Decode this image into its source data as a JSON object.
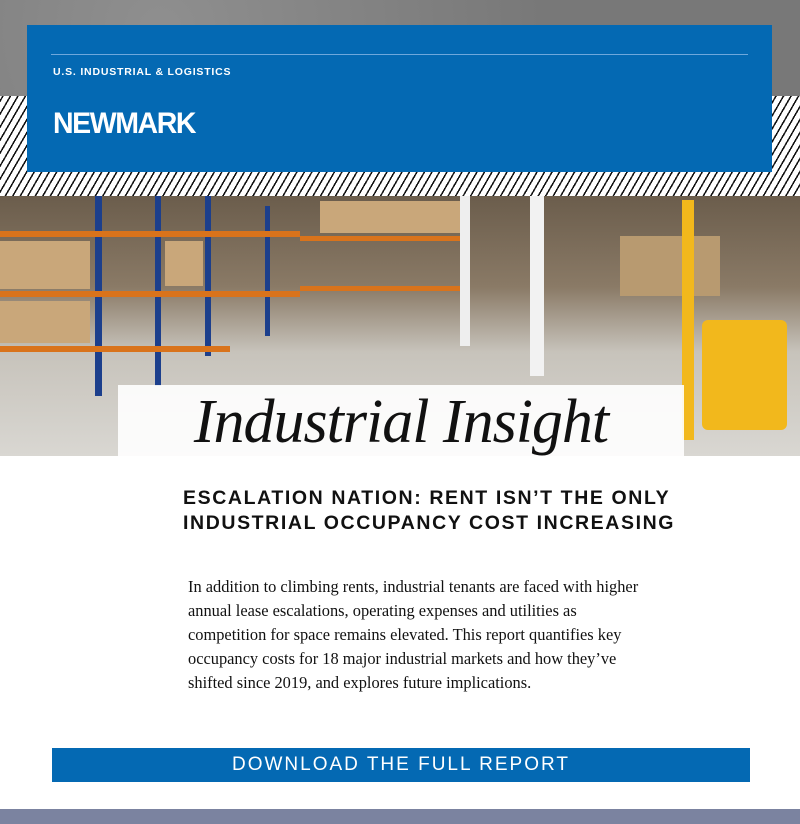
{
  "header": {
    "section_label": "U.S. INDUSTRIAL & LOGISTICS",
    "logo_text": "NEWMARK",
    "brand_color": "#0469b3"
  },
  "hero": {
    "title": "Industrial Insight",
    "image": "warehouse-forklift-photo"
  },
  "article": {
    "headline": "ESCALATION NATION: RENT ISN’T THE ONLY INDUSTRIAL OCCUPANCY COST INCREASING",
    "body": "In addition to climbing rents, industrial tenants are faced with higher annual lease escalations, operating expenses and utilities as competition for space remains elevated. This report quantifies key occupancy costs for 18 major industrial markets and how they’ve shifted since 2019, and explores future implications."
  },
  "cta": {
    "label": "DOWNLOAD THE FULL REPORT"
  }
}
